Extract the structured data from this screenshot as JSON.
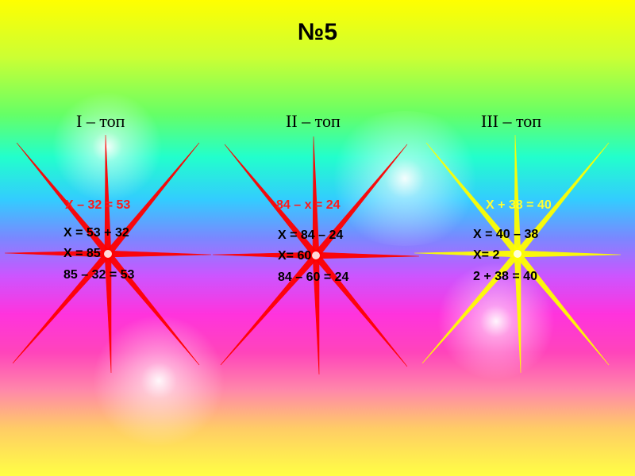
{
  "title": "№5",
  "groups": [
    {
      "label": "I – топ",
      "equation": "X – 32 = 53",
      "steps": [
        "X = 53 + 32",
        "X = 85",
        "85 – 32 = 53"
      ],
      "star_color": "#ff0000"
    },
    {
      "label": "II – топ",
      "equation": "84 – x = 24",
      "steps": [
        "X = 84 – 24",
        "X= 60",
        "84 – 60 = 24"
      ],
      "star_color": "#ff0000"
    },
    {
      "label": "III – топ",
      "equation": "X + 38 = 40",
      "steps": [
        "X = 40 – 38",
        "X= 2",
        "2 + 38 = 40"
      ],
      "star_color": "#ffff00"
    }
  ]
}
